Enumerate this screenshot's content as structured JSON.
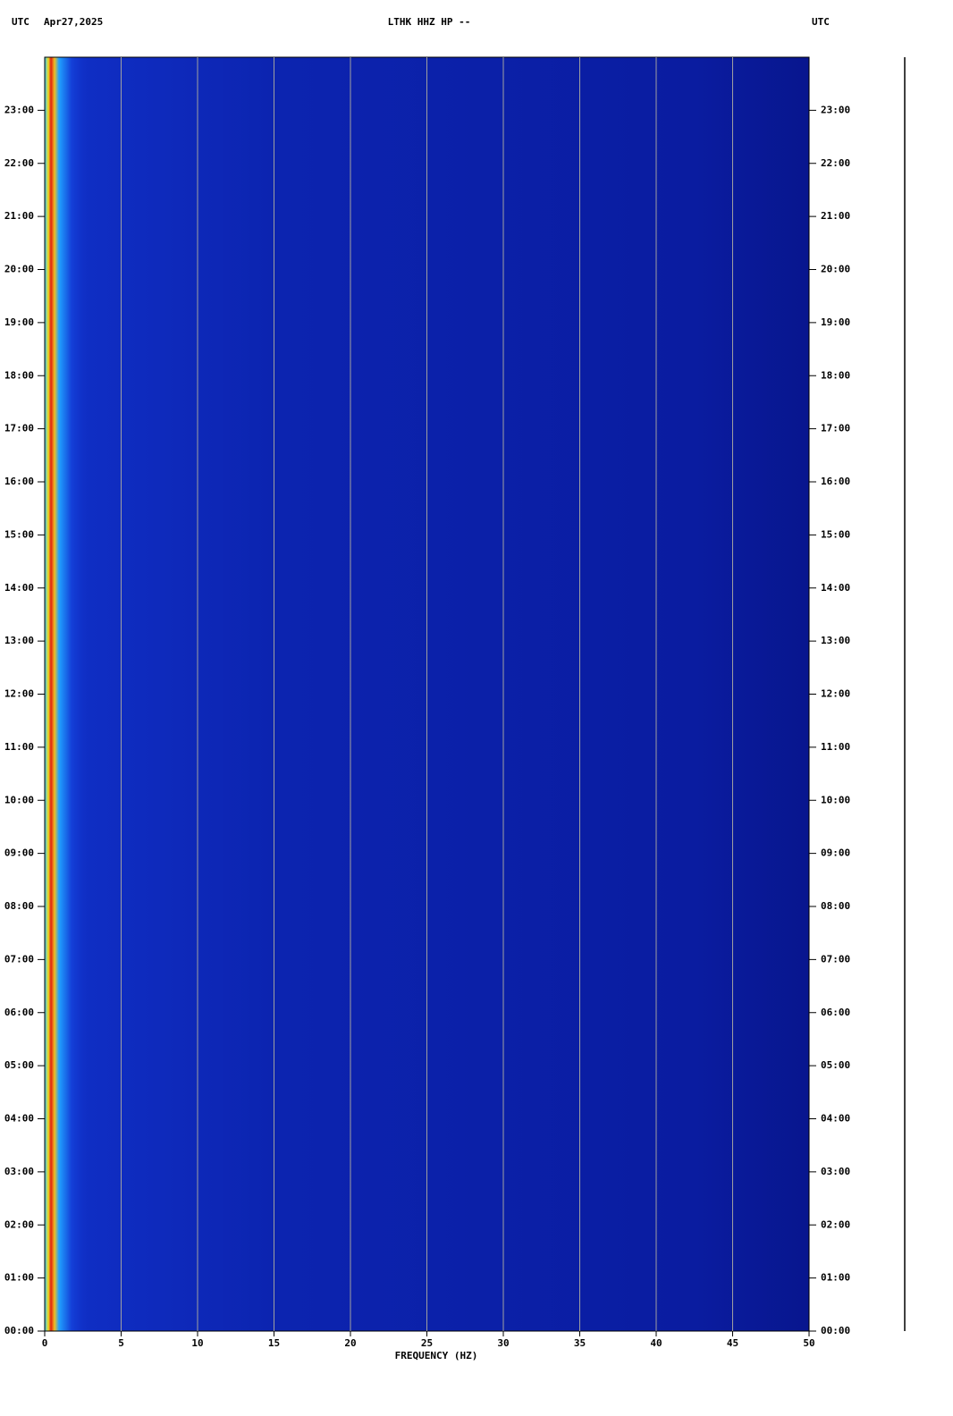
{
  "chart_data": {
    "type": "spectrogram",
    "header_left_zone": "UTC",
    "header_date": "Apr27,2025",
    "title": "LTHK HHZ HP --",
    "header_right_zone": "UTC",
    "x_label": "FREQUENCY (HZ)",
    "xlim": [
      0,
      50
    ],
    "xticks": [
      0,
      5,
      10,
      15,
      20,
      25,
      30,
      35,
      40,
      45,
      50
    ],
    "ylim": [
      0,
      24
    ],
    "yticks": [
      {
        "value": 0,
        "label": "00:00"
      },
      {
        "value": 1,
        "label": "01:00"
      },
      {
        "value": 2,
        "label": "02:00"
      },
      {
        "value": 3,
        "label": "03:00"
      },
      {
        "value": 4,
        "label": "04:00"
      },
      {
        "value": 5,
        "label": "05:00"
      },
      {
        "value": 6,
        "label": "06:00"
      },
      {
        "value": 7,
        "label": "07:00"
      },
      {
        "value": 8,
        "label": "08:00"
      },
      {
        "value": 9,
        "label": "09:00"
      },
      {
        "value": 10,
        "label": "10:00"
      },
      {
        "value": 11,
        "label": "11:00"
      },
      {
        "value": 12,
        "label": "12:00"
      },
      {
        "value": 13,
        "label": "13:00"
      },
      {
        "value": 14,
        "label": "14:00"
      },
      {
        "value": 15,
        "label": "15:00"
      },
      {
        "value": 16,
        "label": "16:00"
      },
      {
        "value": 17,
        "label": "17:00"
      },
      {
        "value": 18,
        "label": "18:00"
      },
      {
        "value": 19,
        "label": "19:00"
      },
      {
        "value": 20,
        "label": "20:00"
      },
      {
        "value": 21,
        "label": "21:00"
      },
      {
        "value": 22,
        "label": "22:00"
      },
      {
        "value": 23,
        "label": "23:00"
      }
    ],
    "grid": true,
    "grid_color": "#a0a0a0"
  }
}
